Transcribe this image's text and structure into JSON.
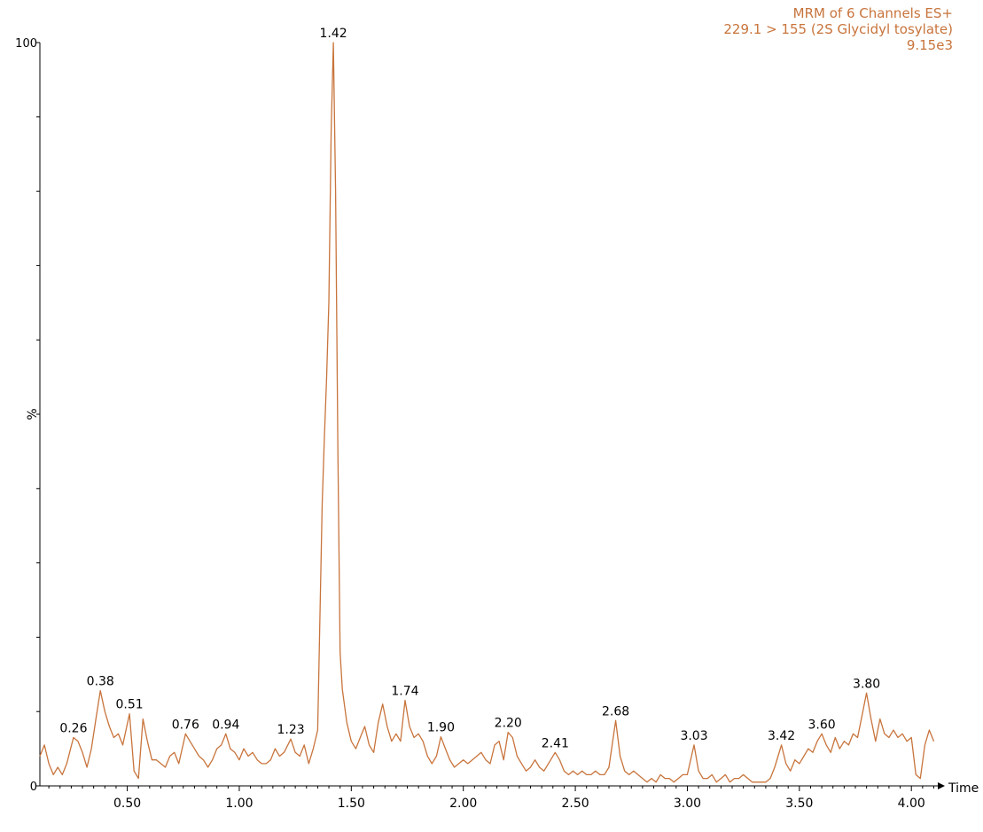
{
  "header": {
    "line1": "MRM of 6 Channels ES+",
    "line2": "229.1 > 155 (2S Glycidyl tosylate)",
    "line3": "9.15e3"
  },
  "colors": {
    "trace": "#c8743c",
    "axis": "#000000",
    "text": "#000000"
  },
  "chart_data": {
    "type": "line",
    "title": "",
    "xlabel": "Time",
    "ylabel": "%",
    "xlim": [
      0.11,
      4.11
    ],
    "ylim": [
      0,
      100
    ],
    "x_ticks": [
      {
        "value": 0.5,
        "label": "0.50"
      },
      {
        "value": 1.0,
        "label": "1.00"
      },
      {
        "value": 1.5,
        "label": "1.50"
      },
      {
        "value": 2.0,
        "label": "2.00"
      },
      {
        "value": 2.5,
        "label": "2.50"
      },
      {
        "value": 3.0,
        "label": "3.00"
      },
      {
        "value": 3.5,
        "label": "3.50"
      },
      {
        "value": 4.0,
        "label": "4.00"
      }
    ],
    "y_ticks": [
      {
        "value": 0,
        "label": "0"
      },
      {
        "value": 100,
        "label": "100"
      }
    ],
    "peak_labels": [
      {
        "x": 0.26,
        "y": 6.5,
        "label": "0.26"
      },
      {
        "x": 0.38,
        "y": 12.8,
        "label": "0.38"
      },
      {
        "x": 0.51,
        "y": 9.7,
        "label": "0.51"
      },
      {
        "x": 0.76,
        "y": 7.0,
        "label": "0.76"
      },
      {
        "x": 0.94,
        "y": 7.0,
        "label": "0.94"
      },
      {
        "x": 1.23,
        "y": 6.3,
        "label": "1.23"
      },
      {
        "x": 1.42,
        "y": 100,
        "label": "1.42"
      },
      {
        "x": 1.74,
        "y": 11.5,
        "label": "1.74"
      },
      {
        "x": 1.9,
        "y": 6.6,
        "label": "1.90"
      },
      {
        "x": 2.2,
        "y": 7.2,
        "label": "2.20"
      },
      {
        "x": 2.41,
        "y": 4.5,
        "label": "2.41"
      },
      {
        "x": 2.68,
        "y": 8.8,
        "label": "2.68"
      },
      {
        "x": 3.03,
        "y": 5.5,
        "label": "3.03"
      },
      {
        "x": 3.42,
        "y": 5.5,
        "label": "3.42"
      },
      {
        "x": 3.6,
        "y": 7.0,
        "label": "3.60"
      },
      {
        "x": 3.8,
        "y": 12.5,
        "label": "3.80"
      }
    ],
    "series": [
      {
        "x": [
          0.11,
          0.13,
          0.15,
          0.17,
          0.19,
          0.21,
          0.23,
          0.26,
          0.28,
          0.3,
          0.32,
          0.34,
          0.36,
          0.38,
          0.4,
          0.42,
          0.44,
          0.46,
          0.48,
          0.51,
          0.53,
          0.55,
          0.57,
          0.59,
          0.61,
          0.63,
          0.65,
          0.67,
          0.69,
          0.71,
          0.73,
          0.76,
          0.78,
          0.8,
          0.82,
          0.84,
          0.86,
          0.88,
          0.9,
          0.92,
          0.94,
          0.96,
          0.98,
          1.0,
          1.02,
          1.04,
          1.06,
          1.08,
          1.1,
          1.12,
          1.14,
          1.16,
          1.18,
          1.2,
          1.23,
          1.25,
          1.27,
          1.29,
          1.31,
          1.33,
          1.35,
          1.37,
          1.38,
          1.39,
          1.4,
          1.41,
          1.42,
          1.43,
          1.44,
          1.45,
          1.46,
          1.48,
          1.5,
          1.52,
          1.54,
          1.56,
          1.58,
          1.6,
          1.62,
          1.64,
          1.66,
          1.68,
          1.7,
          1.72,
          1.74,
          1.76,
          1.78,
          1.8,
          1.82,
          1.84,
          1.86,
          1.88,
          1.9,
          1.92,
          1.94,
          1.96,
          1.98,
          2.0,
          2.02,
          2.04,
          2.06,
          2.08,
          2.1,
          2.12,
          2.14,
          2.16,
          2.18,
          2.2,
          2.22,
          2.24,
          2.26,
          2.28,
          2.3,
          2.32,
          2.34,
          2.36,
          2.38,
          2.41,
          2.43,
          2.45,
          2.47,
          2.49,
          2.51,
          2.53,
          2.55,
          2.57,
          2.59,
          2.61,
          2.63,
          2.65,
          2.68,
          2.7,
          2.72,
          2.74,
          2.76,
          2.78,
          2.8,
          2.82,
          2.84,
          2.86,
          2.88,
          2.9,
          2.92,
          2.94,
          2.96,
          2.98,
          3.0,
          3.03,
          3.05,
          3.07,
          3.09,
          3.11,
          3.13,
          3.15,
          3.17,
          3.19,
          3.21,
          3.23,
          3.25,
          3.27,
          3.29,
          3.31,
          3.33,
          3.35,
          3.37,
          3.39,
          3.42,
          3.44,
          3.46,
          3.48,
          3.5,
          3.52,
          3.54,
          3.56,
          3.58,
          3.6,
          3.62,
          3.64,
          3.66,
          3.68,
          3.7,
          3.72,
          3.74,
          3.76,
          3.78,
          3.8,
          3.82,
          3.84,
          3.86,
          3.88,
          3.9,
          3.92,
          3.94,
          3.96,
          3.98,
          4.0,
          4.02,
          4.04,
          4.06,
          4.08,
          4.1
        ],
        "y": [
          4.0,
          5.5,
          3.0,
          1.5,
          2.5,
          1.5,
          3.0,
          6.5,
          6.0,
          4.5,
          2.5,
          5.0,
          9.0,
          12.8,
          10.0,
          8.0,
          6.5,
          7.0,
          5.5,
          9.7,
          2.0,
          1.0,
          9.0,
          6.0,
          3.5,
          3.5,
          3.0,
          2.5,
          4.0,
          4.5,
          3.0,
          7.0,
          6.0,
          5.0,
          4.0,
          3.5,
          2.5,
          3.5,
          5.0,
          5.5,
          7.0,
          5.0,
          4.5,
          3.5,
          5.0,
          4.0,
          4.5,
          3.5,
          3.0,
          3.0,
          3.5,
          5.0,
          4.0,
          4.5,
          6.3,
          4.5,
          4.0,
          5.5,
          3.0,
          5.0,
          7.5,
          38.0,
          47.0,
          55.0,
          65.0,
          88.0,
          100.0,
          80.0,
          45.0,
          18.0,
          13.0,
          8.5,
          6.0,
          5.0,
          6.5,
          8.0,
          5.5,
          4.5,
          8.5,
          11.0,
          8.0,
          6.0,
          7.0,
          6.0,
          11.5,
          8.0,
          6.5,
          7.0,
          6.0,
          4.0,
          3.0,
          4.0,
          6.6,
          5.0,
          3.5,
          2.5,
          3.0,
          3.5,
          3.0,
          3.5,
          4.0,
          4.5,
          3.5,
          3.0,
          5.5,
          6.0,
          3.5,
          7.2,
          6.5,
          4.0,
          3.0,
          2.0,
          2.5,
          3.5,
          2.5,
          2.0,
          3.0,
          4.5,
          3.5,
          2.0,
          1.5,
          2.0,
          1.5,
          2.0,
          1.5,
          1.5,
          2.0,
          1.5,
          1.5,
          2.5,
          8.8,
          4.0,
          2.0,
          1.5,
          2.0,
          1.5,
          1.0,
          0.5,
          1.0,
          0.5,
          1.5,
          1.0,
          1.0,
          0.5,
          1.0,
          1.5,
          1.5,
          5.5,
          2.0,
          1.0,
          1.0,
          1.5,
          0.5,
          1.0,
          1.5,
          0.5,
          1.0,
          1.0,
          1.5,
          1.0,
          0.5,
          0.5,
          0.5,
          0.5,
          1.0,
          2.5,
          5.5,
          3.0,
          2.0,
          3.5,
          3.0,
          4.0,
          5.0,
          4.5,
          6.0,
          7.0,
          5.5,
          4.5,
          6.5,
          5.0,
          6.0,
          5.5,
          7.0,
          6.5,
          9.5,
          12.5,
          9.0,
          6.0,
          9.0,
          7.0,
          6.5,
          7.5,
          6.5,
          7.0,
          6.0,
          6.5,
          1.5,
          1.0,
          5.5,
          7.5,
          6.0
        ]
      }
    ]
  }
}
